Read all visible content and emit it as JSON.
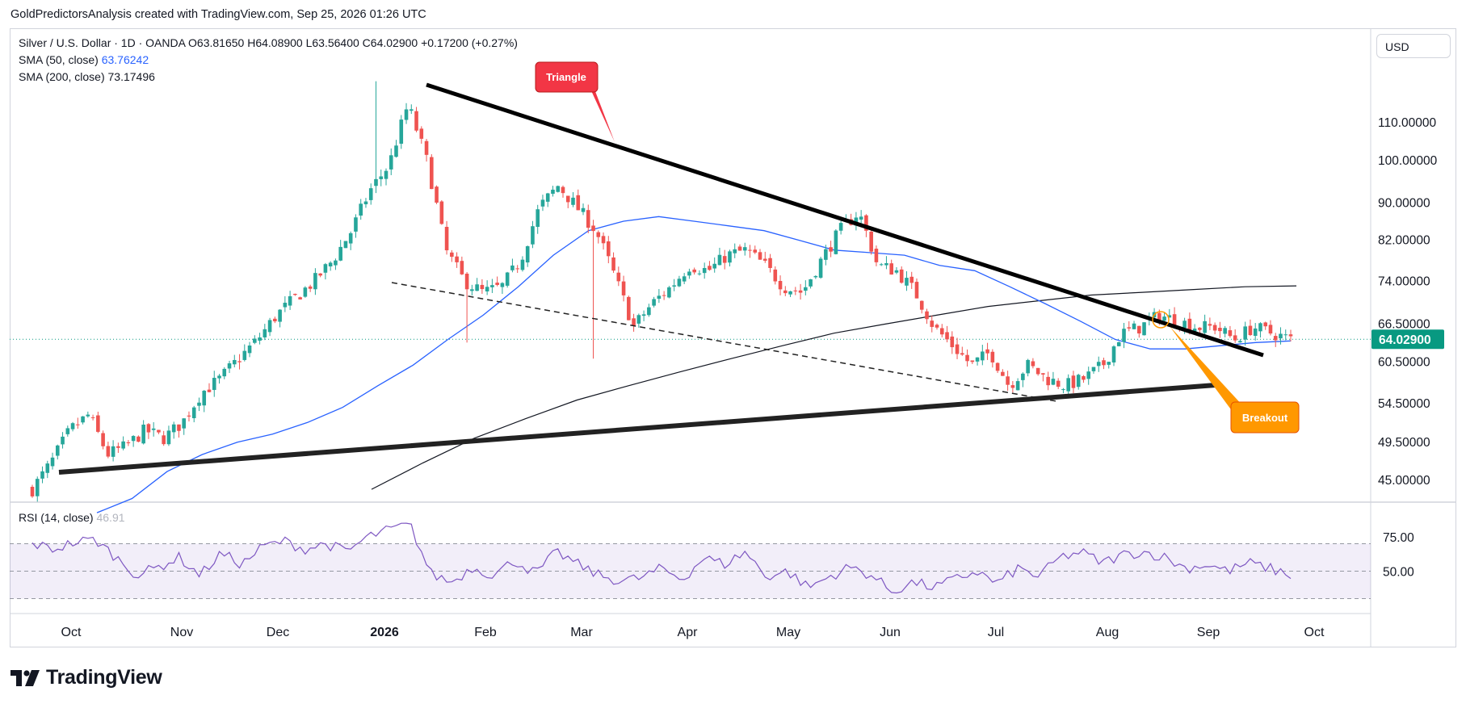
{
  "header": {
    "attribution": "GoldPredictorsAnalysis created with TradingView.com, Sep 25, 2026 01:26 UTC"
  },
  "legend": {
    "symbol": "Silver / U.S. Dollar · 1D · OANDA",
    "ohlc": "O63.81650 H64.08900 L63.56400 C64.02900 +0.17200 (+0.27%)",
    "sma50_label": "SMA (50, close)",
    "sma50_value": "63.76242",
    "sma200_label": "SMA (200, close)",
    "sma200_value": "73.17496"
  },
  "currency": "USD",
  "rsi": {
    "label": "RSI (14, close)",
    "value": "46.91"
  },
  "annotations": {
    "triangle": "Triangle",
    "breakout": "Breakout"
  },
  "brand": {
    "name": "TradingView"
  },
  "colors": {
    "up": "#26a69a",
    "down": "#ef5350",
    "sma50": "#2962ff",
    "sma200": "#131722",
    "rsi": "#7e57c2",
    "last_price": "#089981",
    "triangle_callout": "#f23645",
    "breakout_callout": "#ff9800"
  },
  "chart_data": [
    {
      "type": "candlestick",
      "title": "Silver / U.S. Dollar · 1D · OANDA",
      "x_ticks": [
        "Oct",
        "Nov",
        "Dec",
        "2026",
        "Feb",
        "Mar",
        "Apr",
        "May",
        "Jun",
        "Jul",
        "Aug",
        "Sep",
        "Oct"
      ],
      "y_ticks": [
        "110.00000",
        "100.00000",
        "90.00000",
        "82.00000",
        "74.00000",
        "66.50000",
        "60.50000",
        "54.50000",
        "49.50000",
        "45.00000"
      ],
      "y_scale": "log",
      "ylim": [
        43,
        126
      ],
      "last_price": "64.02900",
      "series": [
        {
          "name": "Silver / U.S. Dollar",
          "kind": "close",
          "values": [
            44,
            47,
            51,
            53,
            48,
            49,
            51,
            50,
            52,
            56,
            58,
            61,
            64,
            68,
            71,
            74,
            78,
            84,
            93,
            99,
            115,
            100,
            80,
            74,
            72,
            73,
            78,
            89,
            94,
            89,
            84,
            75,
            66,
            70,
            73,
            77,
            76,
            79,
            80,
            77,
            73,
            72,
            78,
            84,
            88,
            77,
            76,
            72,
            66,
            63,
            60,
            62,
            57,
            60,
            58,
            57,
            58,
            60,
            65,
            66,
            68,
            67,
            66,
            66,
            64,
            66,
            65,
            64
          ]
        },
        {
          "name": "SMA (50, close)",
          "values": [
            41.5,
            43,
            46,
            48,
            49.5,
            50.5,
            52,
            54,
            57,
            60,
            64,
            68,
            73,
            79,
            84,
            86,
            87,
            86,
            85,
            84,
            82,
            80,
            79.5,
            79,
            77,
            76,
            73,
            70,
            67,
            64,
            62.5,
            62.5,
            63,
            63.5,
            63.76
          ]
        },
        {
          "name": "SMA (200, close)",
          "values": [
            44,
            47,
            50,
            52.5,
            55,
            57,
            59,
            61,
            63,
            65,
            66.5,
            68,
            69.5,
            70.5,
            71.5,
            72,
            72.5,
            73,
            73.17
          ]
        }
      ],
      "annotations": [
        "Triangle",
        "Breakout"
      ]
    },
    {
      "type": "line",
      "title": "RSI (14, close)",
      "y_ticks": [
        "75.00",
        "50.00"
      ],
      "ylim": [
        28,
        100
      ],
      "series": [
        {
          "name": "RSI (14, close)",
          "values": [
            70,
            66,
            71,
            73,
            60,
            47,
            53,
            60,
            47,
            63,
            55,
            68,
            72,
            66,
            70,
            64,
            75,
            80,
            84,
            48,
            42,
            53,
            47,
            58,
            48,
            64,
            55,
            47,
            43,
            45,
            52,
            44,
            60,
            55,
            64,
            46,
            50,
            38,
            46,
            53,
            47,
            35,
            42,
            38,
            44,
            50,
            41,
            52,
            46,
            60,
            64,
            56,
            62,
            64,
            60,
            52,
            55,
            50,
            56,
            52,
            47
          ]
        }
      ],
      "bands": [
        30,
        50,
        70
      ]
    }
  ]
}
